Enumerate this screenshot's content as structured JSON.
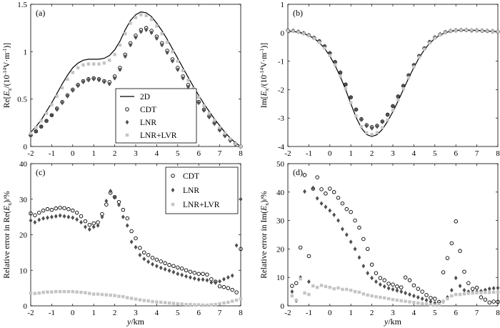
{
  "chart_data": [
    {
      "type": "line",
      "panel_label": "(a)",
      "title": "",
      "xlabel": "",
      "ylabel": "Re[Ex/(10⁻¹⁴V·m⁻¹)]",
      "ylabel_parts": {
        "pre": "Re[",
        "main": "E",
        "sub": "x",
        "post": "/(10",
        "sup1": "-14",
        "mid": "V·m",
        "sup2": "-1",
        "end": ")]"
      },
      "xlim": [
        -2,
        8
      ],
      "ylim": [
        0,
        1.5
      ],
      "xticks": [
        -2,
        -1,
        0,
        1,
        2,
        3,
        4,
        5,
        6,
        7,
        8
      ],
      "yticks": [
        0,
        0.5,
        1,
        1.5
      ],
      "ytick_labels": [
        "0",
        "0.5",
        "1",
        "1.5"
      ],
      "legend_position": "center",
      "x": [
        -2.0,
        -1.75,
        -1.5,
        -1.25,
        -1.0,
        -0.75,
        -0.5,
        -0.25,
        0.0,
        0.25,
        0.5,
        0.75,
        1.0,
        1.25,
        1.5,
        1.75,
        2.0,
        2.25,
        2.5,
        2.75,
        3.0,
        3.25,
        3.5,
        3.75,
        4.0,
        4.25,
        4.5,
        4.75,
        5.0,
        5.25,
        5.5,
        5.75,
        6.0,
        6.25,
        6.5,
        6.75,
        7.0,
        7.25,
        7.5,
        7.75,
        8.0
      ],
      "series": [
        {
          "name": "2D",
          "style": "line",
          "color": "#000000",
          "values": [
            0.15,
            0.21,
            0.28,
            0.37,
            0.46,
            0.56,
            0.66,
            0.75,
            0.83,
            0.88,
            0.91,
            0.92,
            0.92,
            0.92,
            0.93,
            0.96,
            1.02,
            1.11,
            1.23,
            1.33,
            1.39,
            1.42,
            1.41,
            1.37,
            1.3,
            1.22,
            1.13,
            1.03,
            0.93,
            0.83,
            0.73,
            0.63,
            0.54,
            0.45,
            0.37,
            0.29,
            0.22,
            0.15,
            0.09,
            0.04,
            0.0
          ]
        },
        {
          "name": "CDT",
          "style": "marker",
          "marker": "circle",
          "color": "#000000",
          "values": [
            0.12,
            0.16,
            0.21,
            0.27,
            0.33,
            0.4,
            0.47,
            0.54,
            0.6,
            0.65,
            0.69,
            0.71,
            0.72,
            0.71,
            0.69,
            0.68,
            0.74,
            0.83,
            0.97,
            1.09,
            1.17,
            1.23,
            1.25,
            1.22,
            1.16,
            1.09,
            1.01,
            0.92,
            0.83,
            0.74,
            0.65,
            0.56,
            0.47,
            0.39,
            0.32,
            0.25,
            0.18,
            0.12,
            0.07,
            0.03,
            0.0
          ]
        },
        {
          "name": "LNR",
          "style": "marker",
          "marker": "diamond",
          "color": "#505050",
          "values": [
            0.12,
            0.16,
            0.21,
            0.27,
            0.33,
            0.39,
            0.46,
            0.53,
            0.59,
            0.64,
            0.68,
            0.7,
            0.71,
            0.7,
            0.68,
            0.66,
            0.72,
            0.81,
            0.95,
            1.07,
            1.15,
            1.21,
            1.23,
            1.2,
            1.14,
            1.07,
            0.99,
            0.9,
            0.81,
            0.72,
            0.63,
            0.54,
            0.46,
            0.38,
            0.31,
            0.24,
            0.17,
            0.11,
            0.06,
            0.02,
            0.0
          ]
        },
        {
          "name": "LNR+LVR",
          "style": "marker",
          "marker": "square",
          "color": "#c4c4c4",
          "values": [
            0.14,
            0.2,
            0.27,
            0.35,
            0.44,
            0.53,
            0.62,
            0.71,
            0.78,
            0.83,
            0.86,
            0.87,
            0.87,
            0.87,
            0.88,
            0.91,
            0.97,
            1.07,
            1.19,
            1.3,
            1.36,
            1.39,
            1.38,
            1.34,
            1.27,
            1.19,
            1.1,
            1.0,
            0.9,
            0.8,
            0.7,
            0.61,
            0.52,
            0.43,
            0.35,
            0.28,
            0.2,
            0.14,
            0.08,
            0.03,
            0.0
          ]
        }
      ]
    },
    {
      "type": "line",
      "panel_label": "(b)",
      "title": "",
      "xlabel": "",
      "ylabel": "Im[Ex/(10⁻¹⁴V·m⁻¹)]",
      "ylabel_parts": {
        "pre": "Im[",
        "main": "E",
        "sub": "x",
        "post": "/(10",
        "sup1": "-14",
        "mid": "V·m",
        "sup2": "-1",
        "end": ")]"
      },
      "xlim": [
        -2,
        8
      ],
      "ylim": [
        -4,
        1
      ],
      "xticks": [
        -2,
        -1,
        0,
        1,
        2,
        3,
        4,
        5,
        6,
        7,
        8
      ],
      "yticks": [
        -4,
        -3,
        -2,
        -1,
        0,
        1
      ],
      "ytick_labels": [
        "-4",
        "-3",
        "-2",
        "-1",
        "0",
        "1"
      ],
      "legend_position": "none",
      "x": [
        -2.0,
        -1.75,
        -1.5,
        -1.25,
        -1.0,
        -0.75,
        -0.5,
        -0.25,
        0.0,
        0.25,
        0.5,
        0.75,
        1.0,
        1.25,
        1.5,
        1.75,
        2.0,
        2.25,
        2.5,
        2.75,
        3.0,
        3.25,
        3.5,
        3.75,
        4.0,
        4.25,
        4.5,
        4.75,
        5.0,
        5.25,
        5.5,
        5.75,
        6.0,
        6.25,
        6.5,
        6.75,
        7.0,
        7.25,
        7.5,
        7.75,
        8.0
      ],
      "series": [
        {
          "name": "2D",
          "style": "line",
          "color": "#000000",
          "values": [
            0.06,
            0.04,
            0.02,
            -0.03,
            -0.1,
            -0.2,
            -0.35,
            -0.55,
            -0.82,
            -1.15,
            -1.55,
            -2.0,
            -2.5,
            -2.98,
            -3.35,
            -3.58,
            -3.65,
            -3.58,
            -3.4,
            -3.12,
            -2.78,
            -2.4,
            -2.0,
            -1.6,
            -1.22,
            -0.88,
            -0.6,
            -0.37,
            -0.2,
            -0.08,
            0.0,
            0.05,
            0.08,
            0.09,
            0.09,
            0.09,
            0.08,
            0.07,
            0.06,
            0.05,
            0.04
          ]
        },
        {
          "name": "CDT",
          "style": "marker",
          "marker": "circle",
          "color": "#000000",
          "values": [
            0.08,
            0.06,
            0.03,
            -0.02,
            -0.09,
            -0.18,
            -0.3,
            -0.48,
            -0.72,
            -1.03,
            -1.4,
            -1.82,
            -2.27,
            -2.7,
            -3.04,
            -3.25,
            -3.32,
            -3.27,
            -3.12,
            -2.88,
            -2.58,
            -2.24,
            -1.87,
            -1.5,
            -1.14,
            -0.82,
            -0.55,
            -0.33,
            -0.17,
            -0.06,
            0.02,
            0.06,
            0.08,
            0.09,
            0.09,
            0.08,
            0.08,
            0.07,
            0.06,
            0.05,
            0.04
          ]
        },
        {
          "name": "LNR",
          "style": "marker",
          "marker": "diamond",
          "color": "#505050",
          "values": [
            0.09,
            0.07,
            0.04,
            -0.01,
            -0.08,
            -0.17,
            -0.29,
            -0.47,
            -0.71,
            -1.02,
            -1.39,
            -1.82,
            -2.27,
            -2.71,
            -3.06,
            -3.28,
            -3.36,
            -3.3,
            -3.14,
            -2.89,
            -2.58,
            -2.23,
            -1.86,
            -1.49,
            -1.13,
            -0.81,
            -0.54,
            -0.32,
            -0.16,
            -0.05,
            0.02,
            0.07,
            0.09,
            0.1,
            0.1,
            0.09,
            0.09,
            0.08,
            0.07,
            0.06,
            0.05
          ]
        },
        {
          "name": "LNR+LVR",
          "style": "marker",
          "marker": "square",
          "color": "#c4c4c4",
          "values": [
            0.07,
            0.05,
            0.02,
            -0.03,
            -0.1,
            -0.2,
            -0.34,
            -0.54,
            -0.8,
            -1.13,
            -1.52,
            -1.97,
            -2.46,
            -2.93,
            -3.3,
            -3.52,
            -3.58,
            -3.51,
            -3.34,
            -3.07,
            -2.73,
            -2.36,
            -1.97,
            -1.58,
            -1.2,
            -0.86,
            -0.58,
            -0.36,
            -0.19,
            -0.07,
            0.01,
            0.06,
            0.08,
            0.09,
            0.09,
            0.09,
            0.08,
            0.07,
            0.06,
            0.05,
            0.04
          ]
        }
      ]
    },
    {
      "type": "scatter",
      "panel_label": "(c)",
      "title": "",
      "xlabel": "y/km",
      "ylabel": "Relative error in Re(Ex)/%",
      "ylabel_parts": {
        "pre": "Relative error in Re(",
        "main": "E",
        "sub": "x",
        "end": ")/%"
      },
      "xlim": [
        -2,
        8
      ],
      "ylim": [
        0,
        40
      ],
      "xticks": [
        -2,
        -1,
        0,
        1,
        2,
        3,
        4,
        5,
        6,
        7,
        8
      ],
      "yticks": [
        0,
        10,
        20,
        30,
        40
      ],
      "ytick_labels": [
        "0",
        "10",
        "20",
        "30",
        "40"
      ],
      "legend_position": "top-right",
      "x": [
        -2.0,
        -1.8,
        -1.6,
        -1.4,
        -1.2,
        -1.0,
        -0.8,
        -0.6,
        -0.4,
        -0.2,
        0.0,
        0.2,
        0.4,
        0.6,
        0.8,
        1.0,
        1.2,
        1.4,
        1.6,
        1.8,
        2.0,
        2.2,
        2.4,
        2.6,
        2.8,
        3.0,
        3.2,
        3.4,
        3.6,
        3.8,
        4.0,
        4.2,
        4.4,
        4.6,
        4.8,
        5.0,
        5.2,
        5.4,
        5.6,
        5.8,
        6.0,
        6.2,
        6.4,
        6.6,
        6.8,
        7.0,
        7.2,
        7.4,
        7.6,
        7.8,
        8.0
      ],
      "series": [
        {
          "name": "CDT",
          "marker": "circle",
          "color": "#000000",
          "values": [
            26.0,
            25.5,
            26.2,
            26.8,
            27.2,
            27.0,
            27.4,
            27.6,
            27.5,
            27.2,
            26.8,
            26.2,
            25.2,
            23.8,
            22.8,
            23.2,
            23.5,
            25.8,
            28.5,
            31.8,
            30.6,
            29.2,
            27.0,
            24.6,
            21.0,
            19.0,
            16.3,
            15.0,
            14.3,
            13.5,
            13.0,
            12.5,
            12.0,
            11.5,
            11.2,
            10.8,
            10.5,
            10.0,
            9.6,
            9.3,
            9.0,
            9.0,
            8.8,
            7.5,
            6.8,
            5.5,
            5.3,
            5.0,
            4.5,
            3.8,
            16.0
          ]
        },
        {
          "name": "LNR",
          "marker": "diamond",
          "color": "#505050",
          "values": [
            24.0,
            23.5,
            24.2,
            24.6,
            24.8,
            25.0,
            25.2,
            25.4,
            25.2,
            25.0,
            24.8,
            24.3,
            23.5,
            22.2,
            21.5,
            22.2,
            22.6,
            25.0,
            29.5,
            32.3,
            30.5,
            28.4,
            25.0,
            22.6,
            18.0,
            16.5,
            14.3,
            13.2,
            12.4,
            11.7,
            11.2,
            10.7,
            10.3,
            9.9,
            9.5,
            9.0,
            8.7,
            8.3,
            8.0,
            7.7,
            7.4,
            7.4,
            7.2,
            6.6,
            6.5,
            6.9,
            7.5,
            8.0,
            8.5,
            17.0,
            30.0
          ]
        },
        {
          "name": "LNR+LVR",
          "marker": "square",
          "color": "#c4c4c4",
          "values": [
            3.6,
            3.5,
            3.6,
            3.8,
            3.9,
            3.9,
            4.0,
            4.0,
            4.0,
            4.0,
            4.0,
            3.9,
            3.8,
            3.7,
            3.5,
            3.3,
            3.3,
            3.2,
            3.1,
            3.0,
            2.9,
            2.7,
            2.6,
            2.3,
            2.1,
            1.9,
            1.7,
            1.5,
            1.4,
            1.2,
            1.1,
            1.0,
            0.9,
            0.8,
            0.7,
            0.6,
            0.5,
            0.4,
            0.4,
            0.3,
            0.3,
            0.2,
            0.2,
            0.3,
            0.4,
            0.6,
            0.8,
            1.0,
            1.3,
            1.6,
            2.0
          ]
        }
      ]
    },
    {
      "type": "scatter",
      "panel_label": "(d)",
      "title": "",
      "xlabel": "y/km",
      "ylabel": "Relative error in Im(Ex)/%",
      "ylabel_parts": {
        "pre": "Relative error in Im(",
        "main": "E",
        "sub": "x",
        "end": ")/%"
      },
      "xlim": [
        -2,
        8
      ],
      "ylim": [
        0,
        50
      ],
      "xticks": [
        -2,
        -1,
        0,
        1,
        2,
        3,
        4,
        5,
        6,
        7,
        8
      ],
      "yticks": [
        0,
        10,
        20,
        30,
        40,
        50
      ],
      "ytick_labels": [
        "0",
        "10",
        "20",
        "30",
        "40",
        "50"
      ],
      "legend_position": "none",
      "x": [
        -1.8,
        -1.6,
        -1.4,
        -1.2,
        -1.0,
        -0.8,
        -0.6,
        -0.4,
        -0.2,
        0.0,
        0.2,
        0.4,
        0.6,
        0.8,
        1.0,
        1.2,
        1.4,
        1.6,
        1.8,
        2.0,
        2.2,
        2.4,
        2.6,
        2.8,
        3.0,
        3.2,
        3.4,
        3.6,
        3.8,
        4.0,
        4.2,
        4.4,
        4.6,
        4.8,
        5.0,
        5.2,
        5.4,
        5.6,
        5.8,
        6.0,
        6.2,
        6.4,
        6.6,
        6.8,
        7.0,
        7.2,
        7.4,
        7.6,
        7.8,
        8.0
      ],
      "series": [
        {
          "name": "CDT",
          "marker": "circle",
          "color": "#000000",
          "values": [
            7.0,
            8.0,
            20.5,
            46.0,
            17.5,
            41.2,
            45.2,
            41.0,
            39.5,
            41.2,
            40.0,
            38.0,
            36.0,
            34.0,
            33.0,
            30.0,
            27.5,
            23.5,
            20.0,
            14.5,
            11.5,
            9.8,
            9.0,
            7.8,
            7.5,
            6.8,
            6.5,
            10.0,
            9.0,
            7.2,
            6.0,
            5.0,
            3.8,
            2.8,
            2.5,
            1.4,
            11.8,
            16.8,
            22.0,
            29.7,
            19.3,
            12.0,
            8.0,
            6.0,
            6.4,
            3.0,
            2.2,
            1.2,
            1.5,
            1.4
          ]
        },
        {
          "name": "LNR",
          "marker": "diamond",
          "color": "#505050",
          "values": [
            5.0,
            1.8,
            10.0,
            40.2,
            8.5,
            41.5,
            37.8,
            36.0,
            34.8,
            33.5,
            32.0,
            30.0,
            27.0,
            25.0,
            22.5,
            20.0,
            17.0,
            14.0,
            11.5,
            9.8,
            8.5,
            7.5,
            6.8,
            6.2,
            5.8,
            5.4,
            5.0,
            4.5,
            4.0,
            3.5,
            3.0,
            2.5,
            2.0,
            1.5,
            1.0,
            0.8,
            1.5,
            3.0,
            5.5,
            9.8,
            7.0,
            5.5,
            5.0,
            4.8,
            5.0,
            5.2,
            5.6,
            6.0,
            6.2,
            6.3
          ]
        },
        {
          "name": "LNR+LVR",
          "marker": "square",
          "color": "#c4c4c4",
          "values": [
            3.5,
            2.0,
            9.5,
            4.5,
            4.0,
            7.0,
            6.5,
            7.2,
            6.8,
            6.5,
            6.0,
            6.3,
            5.8,
            5.8,
            5.5,
            5.0,
            4.8,
            4.2,
            3.8,
            3.5,
            3.2,
            3.0,
            2.8,
            2.5,
            2.2,
            2.0,
            1.8,
            1.6,
            1.4,
            1.2,
            1.0,
            0.8,
            0.6,
            0.4,
            0.3,
            0.5,
            1.5,
            2.5,
            3.5,
            4.0,
            4.0,
            4.2,
            4.4,
            4.5,
            4.6,
            4.6,
            4.7,
            4.7,
            4.8,
            4.8
          ]
        }
      ]
    }
  ]
}
